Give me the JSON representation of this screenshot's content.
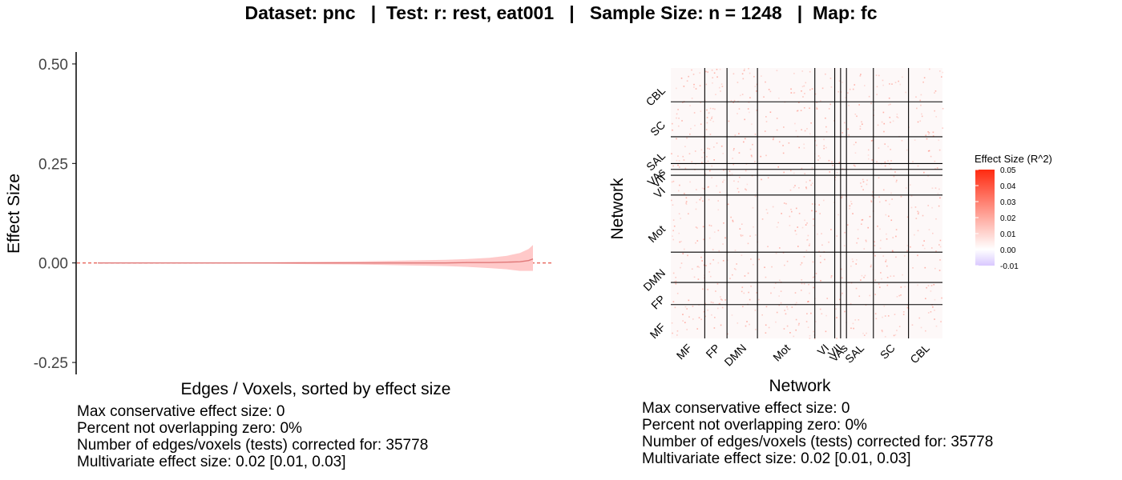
{
  "header": {
    "title": "Dataset: pnc   |  Test: r: rest, eat001   |   Sample Size: n = 1248   |  Map: fc"
  },
  "colors": {
    "ribbon": "#ffc9c9",
    "line": "#e07878",
    "zero_line": "#e8665c",
    "grid_lines": "#000000",
    "heat_high": "#ff2a10",
    "heat_mid": "#ffffff",
    "heat_low": "#d9c8ff"
  },
  "chart_data": [
    {
      "type": "area",
      "title": "",
      "xlabel": "Edges / Voxels, sorted by effect size",
      "ylabel": "Effect Size",
      "ylim": [
        -0.28,
        0.53
      ],
      "xlim": [
        0,
        1
      ],
      "yticks": [
        0.5,
        0.25,
        0.0,
        -0.25
      ],
      "ytick_labels": [
        "0.50",
        "0.25",
        "0.00",
        "-0.25"
      ],
      "reference_line": 0.0,
      "series": [
        {
          "x": [
            0,
            0.2,
            0.4,
            0.6,
            0.7,
            0.8,
            0.85,
            0.9,
            0.94,
            0.97,
            0.99,
            1.0
          ],
          "y": [
            0,
            0.0,
            0.0,
            0.0,
            0.0,
            0.0,
            0.001,
            0.001,
            0.002,
            0.003,
            0.006,
            0.01
          ],
          "lower": [
            0,
            -0.001,
            -0.002,
            -0.004,
            -0.006,
            -0.008,
            -0.01,
            -0.013,
            -0.016,
            -0.02,
            -0.02,
            -0.02
          ],
          "upper": [
            0,
            0.001,
            0.002,
            0.004,
            0.006,
            0.008,
            0.01,
            0.013,
            0.018,
            0.025,
            0.035,
            0.045
          ]
        }
      ],
      "grid": false,
      "stats": [
        "Max conservative effect size: 0",
        "Percent not overlapping zero: 0%",
        "Number of edges/voxels (tests) corrected for: 35778",
        "Multivariate effect size: 0.02 [0.01, 0.03]"
      ]
    },
    {
      "type": "heatmap",
      "title": "",
      "xlabel": "Network",
      "ylabel": "Network",
      "categories": [
        "MF",
        "FP",
        "DMN",
        "Mot",
        "VI",
        "VII",
        "VAs",
        "SAL",
        "SC",
        "CBL"
      ],
      "category_sizes": [
        29,
        19,
        26,
        49,
        17,
        5,
        5,
        23,
        30,
        29
      ],
      "values_summary": "mostly near-zero effect sizes with sparse faint red speckle",
      "legend": {
        "title": "Effect Size (R^2)",
        "ticks": [
          "0.05",
          "0.04",
          "0.03",
          "0.02",
          "0.01",
          "0.00",
          "-0.01"
        ],
        "range": [
          -0.01,
          0.05
        ],
        "placement": "right"
      },
      "stats": [
        "Max conservative effect size: 0",
        "Percent not overlapping zero: 0%",
        "Number of edges/voxels (tests) corrected for: 35778",
        "Multivariate effect size: 0.02 [0.01, 0.03]"
      ]
    }
  ]
}
